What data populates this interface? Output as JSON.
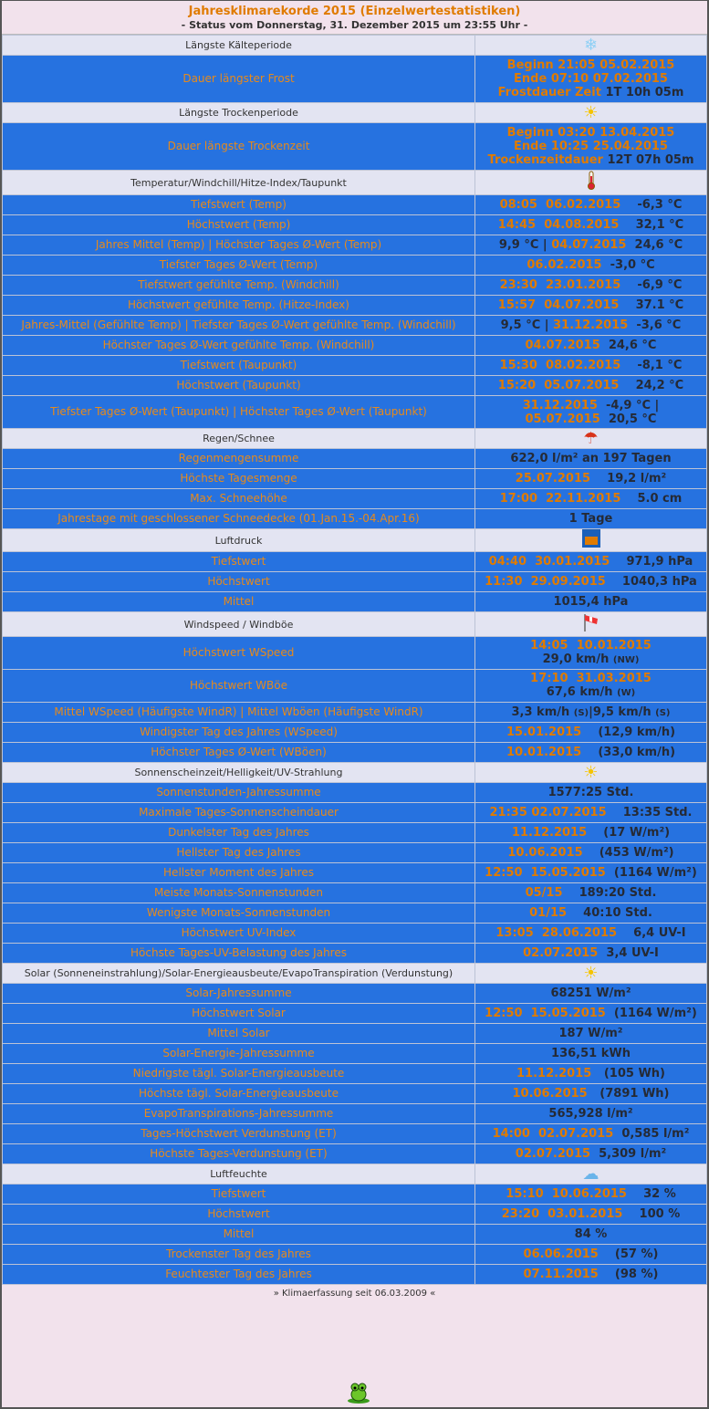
{
  "header": {
    "title": "Jahresklimarekorde 2015 (Einzelwertestatistiken)",
    "subtitle": "- Status vom Donnerstag, 31. Dezember 2015 um 23:55 Uhr -"
  },
  "colors": {
    "row_bg": "#2672e0",
    "label": "#e88a1a",
    "accent": "#e07b00",
    "value": "#252a35",
    "section_bg": "#e3e4f2",
    "page_bg": "#f2e2ec"
  },
  "sections": [
    {
      "title": "Längste Kälteperiode",
      "icon": "snowflake-icon",
      "rows": [
        {
          "label": "Dauer längster Frost",
          "value": [
            [
              [
                "Beginn 21:05 05.02.2015",
                "o"
              ]
            ],
            [
              [
                "Ende 07:10 07.02.2015",
                "o"
              ]
            ],
            [
              [
                "Frostdauer Zeit ",
                "o"
              ],
              [
                "1T 10h 05m",
                "d"
              ]
            ]
          ]
        }
      ]
    },
    {
      "title": "Längste Trockenperiode",
      "icon": "sun-icon",
      "rows": [
        {
          "label": "Dauer längste Trockenzeit",
          "value": [
            [
              [
                "Beginn 03:20 13.04.2015",
                "o"
              ]
            ],
            [
              [
                "Ende 10:25 25.04.2015",
                "o"
              ]
            ],
            [
              [
                "Trockenzeitdauer ",
                "o"
              ],
              [
                "12T 07h 05m",
                "d"
              ]
            ]
          ]
        }
      ]
    },
    {
      "title": "Temperatur/Windchill/Hitze-Index/Taupunkt",
      "icon": "thermometer-icon",
      "rows": [
        {
          "label": "Tiefstwert (Temp)",
          "value": [
            [
              [
                "08:05  06.02.2015",
                "o"
              ],
              [
                "    -6,3 °C",
                "d"
              ]
            ]
          ]
        },
        {
          "label": "Höchstwert (Temp)",
          "value": [
            [
              [
                "14:45  04.08.2015",
                "o"
              ],
              [
                "    32,1 °C",
                "d"
              ]
            ]
          ]
        },
        {
          "label": "Jahres Mittel (Temp) | Höchster Tages Ø-Wert (Temp)",
          "value": [
            [
              [
                "9,9 °C | ",
                "d"
              ],
              [
                "04.07.2015",
                "o"
              ],
              [
                "  24,6 °C",
                "d"
              ]
            ]
          ]
        },
        {
          "label": "Tiefster Tages Ø-Wert (Temp)",
          "value": [
            [
              [
                "06.02.2015",
                "o"
              ],
              [
                "  -3,0 °C",
                "d"
              ]
            ]
          ]
        },
        {
          "label": "Tiefstwert gefühlte Temp. (Windchill)",
          "value": [
            [
              [
                "23:30  23.01.2015",
                "o"
              ],
              [
                "    -6,9 °C",
                "d"
              ]
            ]
          ]
        },
        {
          "label": "Höchstwert gefühlte Temp. (Hitze-Index)",
          "value": [
            [
              [
                "15:57  04.07.2015",
                "o"
              ],
              [
                "    37.1 °C",
                "d"
              ]
            ]
          ]
        },
        {
          "label": "Jahres-Mittel (Gefühlte Temp) | Tiefster Tages Ø-Wert gefühlte Temp. (Windchill)",
          "value": [
            [
              [
                "9,5 °C | ",
                "d"
              ],
              [
                "31.12.2015",
                "o"
              ],
              [
                "  -3,6 °C",
                "d"
              ]
            ]
          ]
        },
        {
          "label": "Höchster Tages Ø-Wert gefühlte Temp. (Windchill)",
          "value": [
            [
              [
                "04.07.2015",
                "o"
              ],
              [
                "  24,6 °C",
                "d"
              ]
            ]
          ]
        },
        {
          "label": "Tiefstwert (Taupunkt)",
          "value": [
            [
              [
                "15:30  08.02.2015",
                "o"
              ],
              [
                "    -8,1 °C",
                "d"
              ]
            ]
          ]
        },
        {
          "label": "Höchstwert (Taupunkt)",
          "value": [
            [
              [
                "15:20  05.07.2015",
                "o"
              ],
              [
                "    24,2 °C",
                "d"
              ]
            ]
          ]
        },
        {
          "label": "Tiefster Tages Ø-Wert (Taupunkt) | Höchster Tages Ø-Wert (Taupunkt)",
          "value": [
            [
              [
                "31.12.2015",
                "o"
              ],
              [
                "  -4,9 °C |",
                "d"
              ]
            ],
            [
              [
                "05.07.2015",
                "o"
              ],
              [
                "  20,5 °C",
                "d"
              ]
            ]
          ]
        }
      ]
    },
    {
      "title": "Regen/Schnee",
      "icon": "umbrella-icon",
      "rows": [
        {
          "label": "Regenmengensumme",
          "value": [
            [
              [
                "622,0 l/m² an 197 Tagen",
                "d"
              ]
            ]
          ]
        },
        {
          "label": "Höchste Tagesmenge",
          "value": [
            [
              [
                "25.07.2015",
                "o"
              ],
              [
                "    19,2 l/m²",
                "d"
              ]
            ]
          ]
        },
        {
          "label": "Max. Schneehöhe",
          "value": [
            [
              [
                "17:00  22.11.2015",
                "o"
              ],
              [
                "    5.0 cm",
                "d"
              ]
            ]
          ]
        },
        {
          "label": "Jahrestage mit geschlossener Schneedecke (01.Jan.15.-04.Apr.16)",
          "value": [
            [
              [
                "1 Tage",
                "d"
              ]
            ]
          ]
        }
      ]
    },
    {
      "title": "Luftdruck",
      "icon": "barometer-icon",
      "rows": [
        {
          "label": "Tiefstwert",
          "value": [
            [
              [
                "04:40  30.01.2015",
                "o"
              ],
              [
                "    971,9 hPa",
                "d"
              ]
            ]
          ]
        },
        {
          "label": "Höchstwert",
          "value": [
            [
              [
                "11:30  29.09.2015",
                "o"
              ],
              [
                "    1040,3 hPa",
                "d"
              ]
            ]
          ]
        },
        {
          "label": "Mittel",
          "value": [
            [
              [
                "1015,4 hPa",
                "d"
              ]
            ]
          ]
        }
      ]
    },
    {
      "title": "Windspeed / Windböe",
      "icon": "windsock-icon",
      "rows": [
        {
          "label": "Höchstwert WSpeed",
          "value": [
            [
              [
                "14:05  10.01.2015",
                "o"
              ]
            ],
            [
              [
                "29,0 km/h ",
                "d"
              ],
              [
                "(NW)",
                "s"
              ]
            ]
          ]
        },
        {
          "label": "Höchstwert WBöe",
          "value": [
            [
              [
                "17:10  31.03.2015",
                "o"
              ]
            ],
            [
              [
                "67,6 km/h ",
                "d"
              ],
              [
                "(W)",
                "s"
              ]
            ]
          ]
        },
        {
          "label": "Mittel WSpeed (Häufigste WindR) | Mittel Wböen (Häufigste WindR)",
          "value": [
            [
              [
                "3,3 km/h ",
                "d"
              ],
              [
                "(S)",
                "s"
              ],
              [
                "|9,5 km/h ",
                "d"
              ],
              [
                "(S)",
                "s"
              ]
            ]
          ]
        },
        {
          "label": "Windigster Tag des Jahres (WSpeed)",
          "value": [
            [
              [
                "15.01.2015",
                "o"
              ],
              [
                "    (12,9 km/h)",
                "d"
              ]
            ]
          ]
        },
        {
          "label": "Höchster Tages Ø-Wert (WBöen)",
          "value": [
            [
              [
                "10.01.2015",
                "o"
              ],
              [
                "    (33,0 km/h)",
                "d"
              ]
            ]
          ]
        }
      ]
    },
    {
      "title": "Sonnenscheinzeit/Helligkeit/UV-Strahlung",
      "icon": "sun-icon",
      "rows": [
        {
          "label": "Sonnenstunden-Jahressumme",
          "value": [
            [
              [
                "1577:25 Std.",
                "d"
              ]
            ]
          ]
        },
        {
          "label": "Maximale Tages-Sonnenscheindauer",
          "value": [
            [
              [
                "21:35 02.07.2015",
                "o"
              ],
              [
                "    13:35 Std.",
                "d"
              ]
            ]
          ]
        },
        {
          "label": "Dunkelster Tag des Jahres",
          "value": [
            [
              [
                "11.12.2015",
                "o"
              ],
              [
                "    (17 W/m²)",
                "d"
              ]
            ]
          ]
        },
        {
          "label": "Hellster Tag des Jahres",
          "value": [
            [
              [
                "10.06.2015",
                "o"
              ],
              [
                "    (453 W/m²)",
                "d"
              ]
            ]
          ]
        },
        {
          "label": "Hellster Moment des Jahres",
          "value": [
            [
              [
                "12:50  15.05.2015",
                "o"
              ],
              [
                "  (1164 W/m²)",
                "d"
              ]
            ]
          ]
        },
        {
          "label": "Meiste Monats-Sonnenstunden",
          "value": [
            [
              [
                "05/15",
                "o"
              ],
              [
                "    189:20 Std.",
                "d"
              ]
            ]
          ]
        },
        {
          "label": "Wenigste Monats-Sonnenstunden",
          "value": [
            [
              [
                "01/15",
                "o"
              ],
              [
                "    40:10 Std.",
                "d"
              ]
            ]
          ]
        },
        {
          "label": "Höchstwert UV-Index",
          "value": [
            [
              [
                "13:05  28.06.2015",
                "o"
              ],
              [
                "    6,4 UV-I",
                "d"
              ]
            ]
          ]
        },
        {
          "label": "Höchste Tages-UV-Belastung des Jahres",
          "value": [
            [
              [
                "02.07.2015",
                "o"
              ],
              [
                "  3,4 UV-I",
                "d"
              ]
            ]
          ]
        }
      ]
    },
    {
      "title": "Solar (Sonneneinstrahlung)/Solar-Energieausbeute/EvapoTranspiration (Verdunstung)",
      "icon": "sun-icon",
      "rows": [
        {
          "label": "Solar-Jahressumme",
          "value": [
            [
              [
                "68251 W/m²",
                "d"
              ]
            ]
          ]
        },
        {
          "label": "Höchstwert Solar",
          "value": [
            [
              [
                "12:50  15.05.2015",
                "o"
              ],
              [
                "  (1164 W/m²)",
                "d"
              ]
            ]
          ]
        },
        {
          "label": "Mittel Solar",
          "value": [
            [
              [
                "187 W/m²",
                "d"
              ]
            ]
          ]
        },
        {
          "label": "Solar-Energie-Jahressumme",
          "value": [
            [
              [
                "136,51 kWh",
                "d"
              ]
            ]
          ]
        },
        {
          "label": "Niedrigste tägl. Solar-Energieausbeute",
          "value": [
            [
              [
                "11.12.2015",
                "o"
              ],
              [
                "   (105 Wh)",
                "d"
              ]
            ]
          ]
        },
        {
          "label": "Höchste tägl. Solar-Energieausbeute",
          "value": [
            [
              [
                "10.06.2015",
                "o"
              ],
              [
                "   (7891 Wh)",
                "d"
              ]
            ]
          ]
        },
        {
          "label": "EvapoTranspirations-Jahressumme",
          "value": [
            [
              [
                "565,928 l/m²",
                "d"
              ]
            ]
          ]
        },
        {
          "label": "Tages-Höchstwert Verdunstung (ET)",
          "value": [
            [
              [
                "14:00  02.07.2015",
                "o"
              ],
              [
                "  0,585 l/m²",
                "d"
              ]
            ]
          ]
        },
        {
          "label": "Höchste Tages-Verdunstung (ET)",
          "value": [
            [
              [
                "02.07.2015",
                "o"
              ],
              [
                "  5,309 l/m²",
                "d"
              ]
            ]
          ]
        }
      ]
    },
    {
      "title": "Luftfeuchte",
      "icon": "humidity-cloud-icon",
      "rows": [
        {
          "label": "Tiefstwert",
          "value": [
            [
              [
                "15:10  10.06.2015",
                "o"
              ],
              [
                "    32 %",
                "d"
              ]
            ]
          ]
        },
        {
          "label": "Höchstwert",
          "value": [
            [
              [
                "23:20  03.01.2015",
                "o"
              ],
              [
                "    100 %",
                "d"
              ]
            ]
          ]
        },
        {
          "label": "Mittel",
          "value": [
            [
              [
                "84 %",
                "d"
              ]
            ]
          ]
        },
        {
          "label": "Trockenster Tag des Jahres",
          "value": [
            [
              [
                "06.06.2015",
                "o"
              ],
              [
                "    (57 %)",
                "d"
              ]
            ]
          ]
        },
        {
          "label": "Feuchtester Tag des Jahres",
          "value": [
            [
              [
                "07.11.2015",
                "o"
              ],
              [
                "    (98 %)",
                "d"
              ]
            ]
          ]
        }
      ]
    }
  ],
  "footer": {
    "text": "» Klimaerfassung seit 06.03.2009 «",
    "mascot_icon": "frog-icon"
  }
}
